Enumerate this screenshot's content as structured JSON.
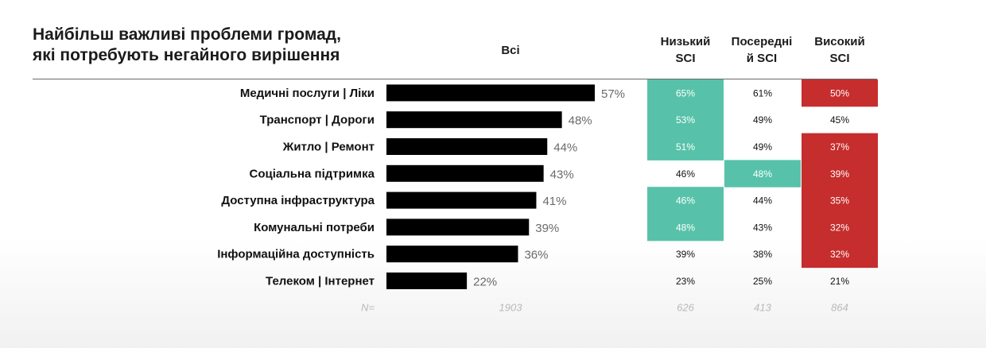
{
  "title_lines": [
    "Найбільш важливі проблеми громад,",
    "які потребують негайного вирішення"
  ],
  "columns": {
    "all": "Всі",
    "low": [
      "Низький",
      "SCI"
    ],
    "mid": [
      "Посередні",
      "й SCI"
    ],
    "high": [
      "Високий",
      "SCI"
    ]
  },
  "colors": {
    "bar": "#000000",
    "teal": "#57c2a9",
    "red": "#c62d2d",
    "n_text": "#b9b9b9"
  },
  "chart_data": {
    "type": "bar",
    "orientation": "horizontal",
    "categories": [
      "Медичні послуги | Ліки",
      "Транспорт | Дороги",
      "Житло | Ремонт",
      "Соціальна підтримка",
      "Доступна інфраструктура",
      "Комунальні потреби",
      "Інформаційна доступність",
      "Телеком | Інтернет"
    ],
    "values": [
      57,
      48,
      44,
      43,
      41,
      39,
      36,
      22
    ],
    "value_labels": [
      "57%",
      "48%",
      "44%",
      "43%",
      "41%",
      "39%",
      "36%",
      "22%"
    ],
    "unit": "%",
    "xlim": [
      0,
      100
    ],
    "series_table": [
      {
        "key": "low",
        "values": [
          "65%",
          "53%",
          "51%",
          "46%",
          "46%",
          "48%",
          "39%",
          "23%"
        ],
        "highlight": [
          "teal",
          "teal",
          "teal",
          "",
          "teal",
          "teal",
          "",
          ""
        ]
      },
      {
        "key": "mid",
        "values": [
          "61%",
          "49%",
          "49%",
          "48%",
          "44%",
          "43%",
          "38%",
          "25%"
        ],
        "highlight": [
          "",
          "",
          "",
          "teal",
          "",
          "",
          "",
          ""
        ]
      },
      {
        "key": "high",
        "values": [
          "50%",
          "45%",
          "37%",
          "39%",
          "35%",
          "32%",
          "32%",
          "21%"
        ],
        "highlight": [
          "red",
          "",
          "red",
          "red",
          "red",
          "red",
          "red",
          ""
        ]
      }
    ],
    "n_row": {
      "label": "N=",
      "all": "1903",
      "low": "626",
      "mid": "413",
      "high": "864"
    }
  }
}
